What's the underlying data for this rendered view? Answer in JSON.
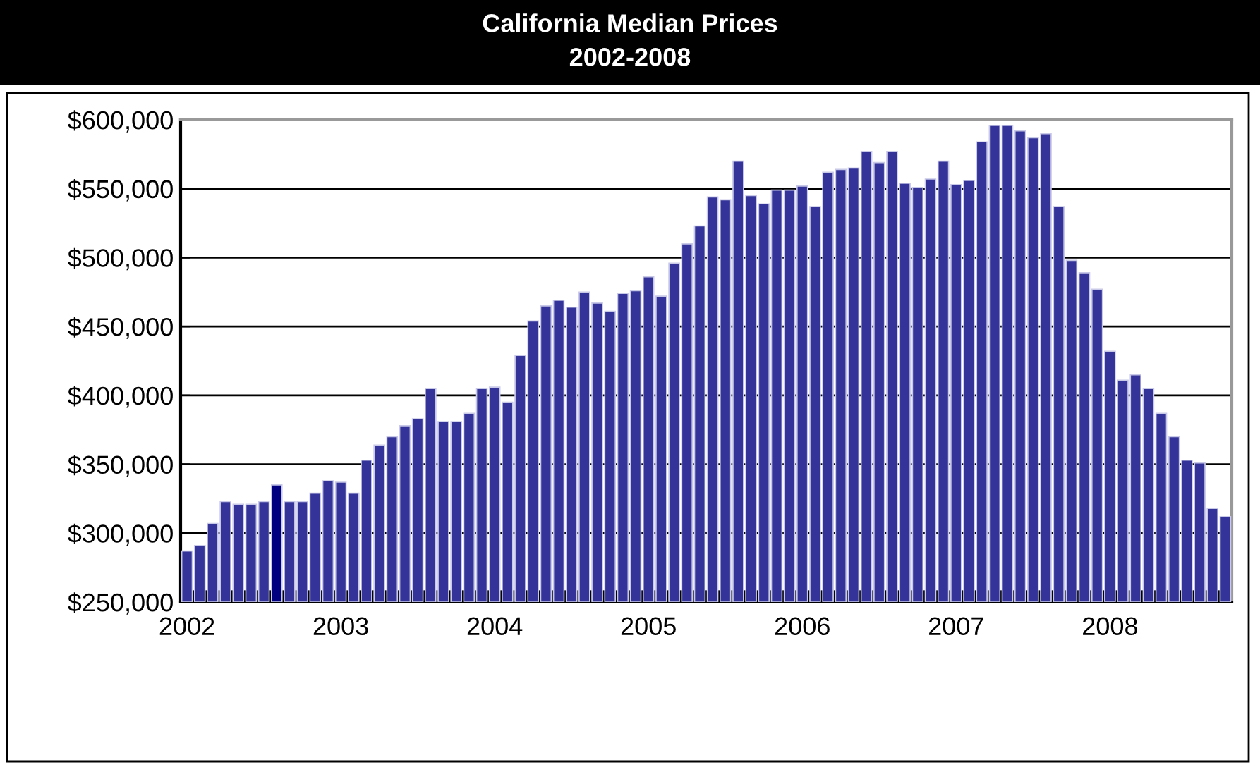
{
  "chart_data": {
    "type": "bar",
    "title": "California Median Prices",
    "subtitle": "2002-2008",
    "categories": [
      "2002",
      null,
      null,
      null,
      null,
      null,
      null,
      null,
      null,
      null,
      null,
      null,
      "2003",
      null,
      null,
      null,
      null,
      null,
      null,
      null,
      null,
      null,
      null,
      null,
      "2004",
      null,
      null,
      null,
      null,
      null,
      null,
      null,
      null,
      null,
      null,
      null,
      "2005",
      null,
      null,
      null,
      null,
      null,
      null,
      null,
      null,
      null,
      null,
      null,
      "2006",
      null,
      null,
      null,
      null,
      null,
      null,
      null,
      null,
      null,
      null,
      null,
      "2007",
      null,
      null,
      null,
      null,
      null,
      null,
      null,
      null,
      null,
      null,
      null,
      "2008",
      null,
      null,
      null,
      null,
      null,
      null,
      null,
      null,
      null
    ],
    "values": [
      287000,
      291000,
      307000,
      323000,
      321000,
      321000,
      323000,
      335000,
      323000,
      323000,
      329000,
      338000,
      337000,
      329000,
      353000,
      364000,
      370000,
      378000,
      383000,
      405000,
      381000,
      381000,
      387000,
      405000,
      406000,
      395000,
      429000,
      454000,
      465000,
      469000,
      464000,
      475000,
      467000,
      461000,
      474000,
      476000,
      486000,
      472000,
      496000,
      510000,
      523000,
      544000,
      542000,
      570000,
      545000,
      539000,
      549000,
      549000,
      552000,
      537000,
      562000,
      564000,
      565000,
      577000,
      569000,
      577000,
      554000,
      551000,
      557000,
      570000,
      553000,
      556000,
      584000,
      596000,
      596000,
      592000,
      587000,
      590000,
      537000,
      498000,
      489000,
      477000,
      432000,
      411000,
      415000,
      405000,
      387000,
      370000,
      353000,
      351000,
      318000,
      312000
    ],
    "colors": [
      "#333399",
      "#333399",
      "#333399",
      "#333399",
      "#333399",
      "#333399",
      "#333399",
      "#000080",
      "#333399",
      "#333399",
      "#333399",
      "#333399",
      "#333399",
      "#333399",
      "#333399",
      "#333399",
      "#333399",
      "#333399",
      "#333399",
      "#333399",
      "#333399",
      "#333399",
      "#333399",
      "#333399",
      "#333399",
      "#333399",
      "#333399",
      "#333399",
      "#333399",
      "#333399",
      "#333399",
      "#333399",
      "#333399",
      "#333399",
      "#333399",
      "#333399",
      "#333399",
      "#333399",
      "#333399",
      "#333399",
      "#333399",
      "#333399",
      "#333399",
      "#333399",
      "#333399",
      "#333399",
      "#333399",
      "#333399",
      "#333399",
      "#333399",
      "#333399",
      "#333399",
      "#333399",
      "#333399",
      "#333399",
      "#333399",
      "#333399",
      "#333399",
      "#333399",
      "#333399",
      "#333399",
      "#333399",
      "#333399",
      "#333399",
      "#333399",
      "#333399",
      "#333399",
      "#333399",
      "#333399",
      "#333399",
      "#333399",
      "#333399",
      "#333399",
      "#333399",
      "#333399",
      "#333399",
      "#333399",
      "#333399",
      "#333399",
      "#333399",
      "#333399",
      "#333399"
    ],
    "ylim": [
      250000,
      600000
    ],
    "yticks": [
      {
        "value": 250000,
        "label": "$250,000"
      },
      {
        "value": 300000,
        "label": "$300,000"
      },
      {
        "value": 350000,
        "label": "$350,000"
      },
      {
        "value": 400000,
        "label": "$400,000"
      },
      {
        "value": 450000,
        "label": "$450,000"
      },
      {
        "value": 500000,
        "label": "$500,000"
      },
      {
        "value": 550000,
        "label": "$550,000"
      },
      {
        "value": 600000,
        "label": "$600,000"
      }
    ],
    "grid": "y",
    "legend": false
  }
}
